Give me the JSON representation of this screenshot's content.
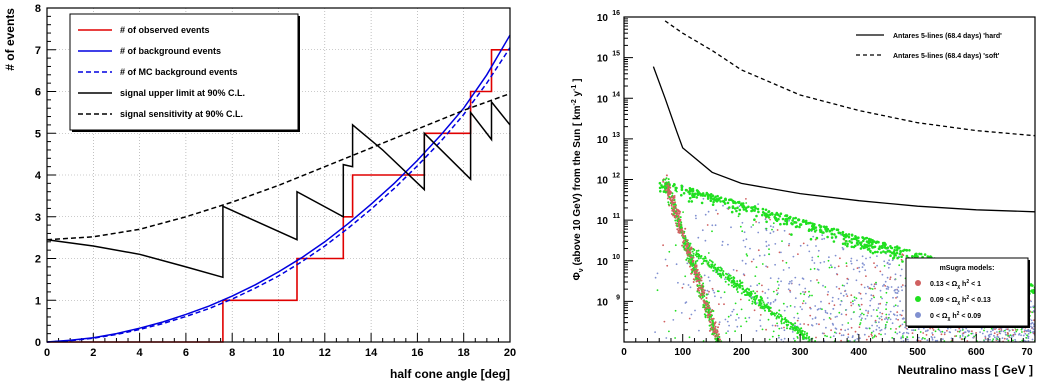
{
  "chart_data": [
    {
      "type": "line",
      "title": "",
      "xlabel": "half cone angle [deg]",
      "ylabel": "# of events",
      "xlim": [
        0,
        20
      ],
      "ylim": [
        0,
        8
      ],
      "grid": true,
      "legend_placement": "top-left",
      "x_ticks": [
        "0",
        "2",
        "4",
        "6",
        "8",
        "10",
        "12",
        "14",
        "16",
        "18",
        "20"
      ],
      "y_ticks": [
        "0",
        "1",
        "2",
        "3",
        "4",
        "5",
        "6",
        "7",
        "8"
      ],
      "series": [
        {
          "name": "# of observed events",
          "style": "step",
          "color": "#e00000",
          "x": [
            0,
            7.6,
            7.6,
            10.8,
            10.8,
            12.8,
            12.8,
            13.2,
            13.2,
            13.8,
            13.8,
            16.3,
            16.3,
            18.3,
            18.3,
            19.2,
            19.2,
            20
          ],
          "y": [
            0,
            0,
            1,
            1,
            2,
            2,
            3,
            3,
            4,
            4,
            4,
            4,
            5,
            5,
            6,
            6,
            7,
            7
          ]
        },
        {
          "name": "# of background events",
          "style": "solid",
          "color": "#0000e0",
          "x": [
            0,
            1,
            2,
            3,
            4,
            5,
            6,
            7,
            8,
            9,
            10,
            11,
            12,
            13,
            14,
            15,
            16,
            17,
            18,
            19,
            20
          ],
          "y": [
            0,
            0.04,
            0.1,
            0.2,
            0.33,
            0.48,
            0.66,
            0.86,
            1.1,
            1.37,
            1.68,
            2.02,
            2.4,
            2.83,
            3.3,
            3.8,
            4.35,
            4.95,
            5.6,
            6.4,
            7.35
          ]
        },
        {
          "name": "# of MC background events",
          "style": "dashed",
          "color": "#0000e0",
          "x": [
            0,
            1,
            2,
            3,
            4,
            5,
            6,
            7,
            8,
            9,
            10,
            11,
            12,
            13,
            14,
            15,
            16,
            17,
            18,
            19,
            20
          ],
          "y": [
            0,
            0.03,
            0.09,
            0.18,
            0.3,
            0.44,
            0.61,
            0.8,
            1.03,
            1.29,
            1.58,
            1.92,
            2.3,
            2.72,
            3.18,
            3.68,
            4.22,
            4.8,
            5.45,
            6.2,
            7.05
          ]
        },
        {
          "name": "signal upper limit at 90% C.L.",
          "style": "solid",
          "color": "#000000",
          "x": [
            0,
            2,
            4,
            6,
            7.6,
            7.6,
            9,
            10.8,
            10.8,
            12.8,
            12.8,
            13.2,
            13.2,
            14.5,
            16.3,
            16.3,
            18.3,
            18.3,
            19.2,
            19.2,
            20
          ],
          "y": [
            2.45,
            2.3,
            2.1,
            1.8,
            1.55,
            3.25,
            2.9,
            2.45,
            3.6,
            3.0,
            4.25,
            4.2,
            5.2,
            4.6,
            3.65,
            5.0,
            3.9,
            5.5,
            4.85,
            5.75,
            5.2
          ]
        },
        {
          "name": "signal sensitivity at 90% C.L.",
          "style": "dashed",
          "color": "#000000",
          "x": [
            0,
            2,
            4,
            6,
            8,
            10,
            12,
            14,
            16,
            18,
            20
          ],
          "y": [
            2.45,
            2.52,
            2.7,
            3.0,
            3.35,
            3.75,
            4.2,
            4.65,
            5.1,
            5.55,
            5.95
          ]
        }
      ]
    },
    {
      "type": "scatter",
      "title": "",
      "xlabel": "Neutralino mass  [ GeV ]",
      "ylabel": "Φ_{ν_μ+ν̄_μ} (above 10 GeV) from the Sun  [ km⁻² y⁻¹ ]",
      "ylabel_main": "(above 10 GeV) from the Sun  [ km",
      "ylabel_unit_exp": "-2",
      "ylabel_unit_y": " y",
      "ylabel_unit_y_exp": "-1",
      "ylabel_close": " ]",
      "ylabel_phi": "Φ",
      "ylabel_sub": "ν",
      "xlim": [
        0,
        700
      ],
      "ylim": [
        100000000.0,
        1e+16
      ],
      "yscale": "log",
      "x_ticks": [
        "0",
        "100",
        "200",
        "300",
        "400",
        "500",
        "600",
        "70"
      ],
      "y_ticks": [
        "10",
        "10",
        "10",
        "10",
        "10",
        "10",
        "10",
        "10"
      ],
      "y_tick_exps": [
        "9",
        "10",
        "11",
        "12",
        "13",
        "14",
        "15",
        "16"
      ],
      "legend_placement": "bottom-right",
      "legend_title": "mSugra models:",
      "series": [
        {
          "name": "Antares 5-lines (68.4 days) 'hard'",
          "style": "solid",
          "color": "#000000",
          "x": [
            50,
            70,
            90,
            100,
            150,
            200,
            300,
            400,
            500,
            600,
            700
          ],
          "y": [
            600000000000000.0,
            100000000000000.0,
            15000000000000.0,
            6000000000000.0,
            1500000000000.0,
            800000000000.0,
            450000000000.0,
            300000000000.0,
            220000000000.0,
            180000000000.0,
            160000000000.0
          ]
        },
        {
          "name": "Antares 5-lines (68.4 days) 'soft'",
          "style": "dashed",
          "color": "#000000",
          "x": [
            70,
            100,
            150,
            200,
            300,
            400,
            500,
            600,
            700
          ],
          "y": [
            8000000000000000.0,
            4000000000000000.0,
            1500000000000000.0,
            500000000000000.0,
            120000000000000.0,
            50000000000000.0,
            25000000000000.0,
            16000000000000.0,
            12000000000000.0
          ]
        },
        {
          "name": "0.13 < Ω",
          "color": "#d06060",
          "legend_suffix": " h",
          "legend_sup": "2",
          "legend_tail": " < 1"
        },
        {
          "name": "0.09 < Ω",
          "color": "#20e020",
          "legend_suffix": " h",
          "legend_sup": "2",
          "legend_tail": " < 0.13"
        },
        {
          "name": "0 < Ω",
          "color": "#8090d0",
          "legend_suffix": " h",
          "legend_sup": "2",
          "legend_tail": " < 0.09"
        }
      ],
      "legend_subscript": "χ"
    }
  ]
}
